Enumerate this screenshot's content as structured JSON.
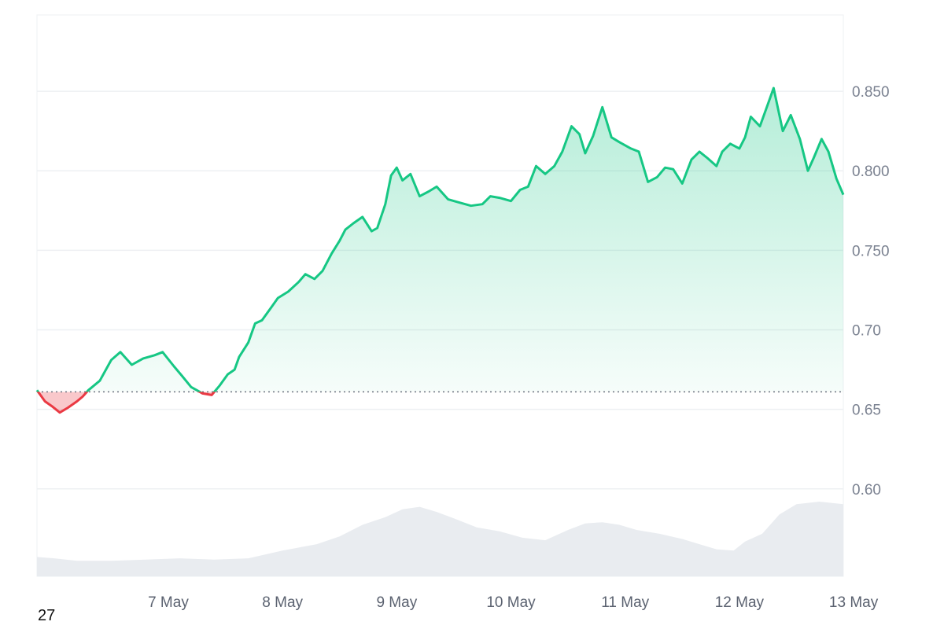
{
  "chart_data": {
    "type": "area",
    "title": "",
    "xlabel": "",
    "ylabel": "",
    "ylim": [
      0.545,
      0.898
    ],
    "y_ticks": [
      "0.60",
      "0.65",
      "0.70",
      "0.750",
      "0.800",
      "0.850"
    ],
    "x_ticks": [
      "7 May",
      "8 May",
      "9 May",
      "10 May",
      "11 May",
      "12 May",
      "13 May"
    ],
    "x_range_days": [
      6.35,
      13.41
    ],
    "baseline": 0.661,
    "grid": true,
    "colors": {
      "above": "#16c784",
      "below": "#ea3943",
      "volume": "#e9ecf0",
      "grid": "#eef0f3",
      "baseline": "#6b7280"
    },
    "series": [
      {
        "x": [
          6.35,
          6.42,
          6.48,
          6.55,
          6.62,
          6.7,
          6.75,
          6.8,
          6.9,
          7.0,
          7.08,
          7.18,
          7.28,
          7.38,
          7.45,
          7.55,
          7.62,
          7.7,
          7.8,
          7.88,
          7.95,
          8.02,
          8.08,
          8.12,
          8.2,
          8.26,
          8.32,
          8.4,
          8.46,
          8.55,
          8.64,
          8.7,
          8.78,
          8.85,
          8.93,
          9.0,
          9.05,
          9.12,
          9.2,
          9.28,
          9.33,
          9.4,
          9.45,
          9.5,
          9.55,
          9.62,
          9.7,
          9.78,
          9.85,
          9.95,
          10.05,
          10.15,
          10.25,
          10.32,
          10.4,
          10.5,
          10.58,
          10.65,
          10.72,
          10.8,
          10.88,
          10.95,
          11.03,
          11.1,
          11.15,
          11.22,
          11.3,
          11.38,
          11.45,
          11.55,
          11.62,
          11.7,
          11.78,
          11.85,
          11.92,
          12.0,
          12.08,
          12.15,
          12.22,
          12.3,
          12.35,
          12.42,
          12.5,
          12.55,
          12.6,
          12.68,
          12.75,
          12.8,
          12.88,
          12.95,
          13.03,
          13.1,
          13.15,
          13.22,
          13.28,
          13.35,
          13.41
        ],
        "values": [
          0.662,
          0.655,
          0.652,
          0.648,
          0.651,
          0.655,
          0.658,
          0.662,
          0.668,
          0.681,
          0.686,
          0.678,
          0.682,
          0.684,
          0.686,
          0.677,
          0.671,
          0.664,
          0.66,
          0.659,
          0.665,
          0.672,
          0.675,
          0.683,
          0.692,
          0.704,
          0.706,
          0.714,
          0.72,
          0.724,
          0.73,
          0.735,
          0.732,
          0.737,
          0.748,
          0.756,
          0.763,
          0.767,
          0.771,
          0.762,
          0.764,
          0.779,
          0.797,
          0.802,
          0.794,
          0.798,
          0.784,
          0.787,
          0.79,
          0.782,
          0.78,
          0.778,
          0.779,
          0.784,
          0.783,
          0.781,
          0.788,
          0.79,
          0.803,
          0.798,
          0.803,
          0.812,
          0.828,
          0.823,
          0.811,
          0.822,
          0.84,
          0.821,
          0.818,
          0.814,
          0.812,
          0.793,
          0.796,
          0.802,
          0.801,
          0.792,
          0.807,
          0.812,
          0.808,
          0.803,
          0.812,
          0.817,
          0.814,
          0.821,
          0.834,
          0.828,
          0.842,
          0.852,
          0.825,
          0.835,
          0.82,
          0.8,
          0.808,
          0.82,
          0.812,
          0.795,
          0.785
        ]
      },
      {
        "name": "",
        "x": [
          6.35,
          6.5,
          6.7,
          7.0,
          7.3,
          7.6,
          7.9,
          8.2,
          8.5,
          8.8,
          9.0,
          9.2,
          9.4,
          9.55,
          9.7,
          9.85,
          10.0,
          10.2,
          10.4,
          10.6,
          10.8,
          11.0,
          11.15,
          11.3,
          11.45,
          11.6,
          11.8,
          12.0,
          12.15,
          12.3,
          12.45,
          12.55,
          12.7,
          12.85,
          13.0,
          13.2,
          13.41
        ],
        "values": [
          0.015,
          0.014,
          0.012,
          0.012,
          0.013,
          0.014,
          0.013,
          0.014,
          0.02,
          0.025,
          0.031,
          0.04,
          0.046,
          0.052,
          0.054,
          0.05,
          0.045,
          0.038,
          0.035,
          0.03,
          0.028,
          0.036,
          0.041,
          0.042,
          0.04,
          0.036,
          0.033,
          0.029,
          0.025,
          0.021,
          0.02,
          0.027,
          0.033,
          0.048,
          0.056,
          0.058,
          0.056
        ]
      }
    ]
  },
  "footer": {
    "corner_label": "27"
  }
}
